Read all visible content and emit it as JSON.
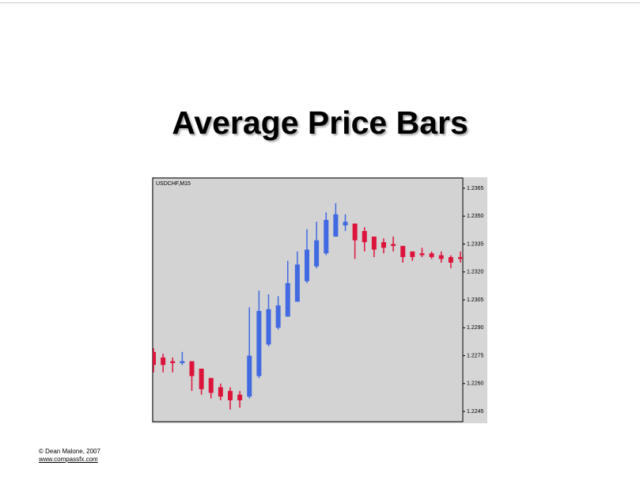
{
  "slide": {
    "title": "Average Price Bars",
    "footer": [
      "© Dean Malone, 2007",
      "www.compassfx.com"
    ]
  },
  "chart_data": {
    "type": "candlestick",
    "title": "USDCHF,M15",
    "up_color": "#4169e1",
    "down_color": "#dc143c",
    "open": [
      1.2277,
      1.2274,
      1.2272,
      1.2271,
      1.2272,
      1.2268,
      1.2263,
      1.2258,
      1.2256,
      1.2254,
      1.2253,
      1.2264,
      1.2281,
      1.229,
      1.2296,
      1.2304,
      1.2315,
      1.2323,
      1.233,
      1.2339,
      1.2345,
      1.2346,
      1.2342,
      1.2339,
      1.2336,
      1.2335,
      1.2334,
      1.2331,
      1.233,
      1.233,
      1.2329,
      1.2328,
      1.2328
    ],
    "high": [
      1.2279,
      1.2276,
      1.2274,
      1.2277,
      1.2272,
      1.2268,
      1.2263,
      1.226,
      1.2258,
      1.2256,
      1.2301,
      1.231,
      1.2308,
      1.2307,
      1.2326,
      1.2331,
      1.2343,
      1.2347,
      1.2352,
      1.2357,
      1.2351,
      1.2346,
      1.2344,
      1.2339,
      1.2338,
      1.2339,
      1.2334,
      1.2331,
      1.2333,
      1.2331,
      1.2331,
      1.2329,
      1.2331
    ],
    "low": [
      1.2266,
      1.2266,
      1.2266,
      1.227,
      1.2256,
      1.2254,
      1.2252,
      1.2251,
      1.2246,
      1.2247,
      1.2252,
      1.2263,
      1.228,
      1.2289,
      1.2296,
      1.2304,
      1.2314,
      1.2322,
      1.2329,
      1.2339,
      1.2342,
      1.2327,
      1.2331,
      1.2328,
      1.233,
      1.2331,
      1.2325,
      1.2326,
      1.2328,
      1.2327,
      1.2325,
      1.2322,
      1.2325
    ],
    "close": [
      1.227,
      1.227,
      1.2271,
      1.2272,
      1.2264,
      1.2257,
      1.2255,
      1.2253,
      1.2251,
      1.2251,
      1.2275,
      1.2299,
      1.23,
      1.2302,
      1.2314,
      1.2324,
      1.2332,
      1.2337,
      1.2348,
      1.2351,
      1.2347,
      1.2337,
      1.2336,
      1.2332,
      1.2333,
      1.2334,
      1.2328,
      1.2328,
      1.2329,
      1.2328,
      1.2327,
      1.2325,
      1.2327
    ],
    "ylim": [
      1.22395,
      1.23705
    ],
    "yticks": [
      1.2365,
      {
        "value": 1.235,
        "label": "1.2350"
      },
      1.2335,
      {
        "value": 1.232,
        "label": "1.2320"
      },
      1.2305,
      {
        "value": 1.229,
        "label": "1.2290"
      },
      1.2275,
      {
        "value": 1.226,
        "label": "1.2260"
      },
      1.2245
    ],
    "grid": false
  }
}
